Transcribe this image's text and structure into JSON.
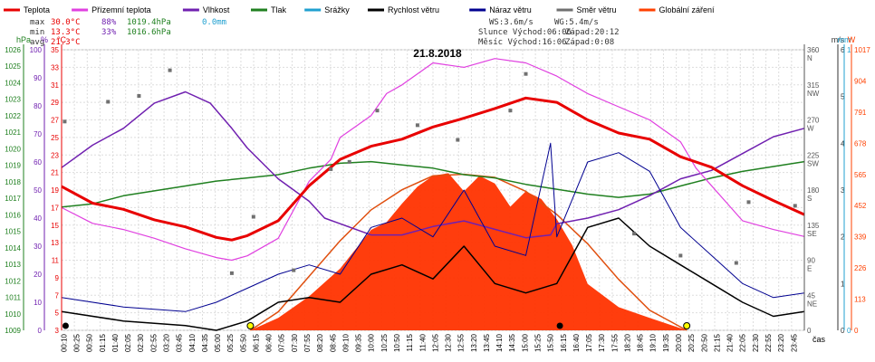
{
  "chart_data": {
    "type": "line",
    "title": "21.8.2018",
    "legend": [
      {
        "name": "Teplota",
        "color": "#e80000"
      },
      {
        "name": "Přízemní teplota",
        "color": "#e040e0"
      },
      {
        "name": "Vlhkost",
        "color": "#7020b0"
      },
      {
        "name": "Tlak",
        "color": "#208020"
      },
      {
        "name": "Srážky",
        "color": "#20a0d0"
      },
      {
        "name": "Rychlost větru",
        "color": "#000000"
      },
      {
        "name": "Náraz větru",
        "color": "#000090"
      },
      {
        "name": "Směr větru",
        "color": "#707070"
      },
      {
        "name": "Globální záření",
        "color": "#ff4000"
      }
    ],
    "stats": {
      "max": {
        "label": "max",
        "temp": "30.0°C",
        "hum": "88%",
        "press": "1019.4hPa",
        "rain": "0.0mm"
      },
      "min": {
        "label": "min",
        "temp": "13.3°C",
        "hum": "33%",
        "press": "1016.6hPa"
      },
      "avg": {
        "label": "avg",
        "temp": "21.3°C"
      }
    },
    "info": {
      "ws": "WS:3.6m/s",
      "wg": "WG:5.4m/s",
      "slunce": "Slunce Východ:06:06",
      "slunce_zapad": "Západ:20:12",
      "mesic": "Měsíc  Východ:16:06",
      "mesic_zapad": "Západ:0:08"
    },
    "axes": {
      "hpa": {
        "unit": "hPa",
        "ticks": [
          "1009",
          "1010",
          "1011",
          "1012",
          "1013",
          "1014",
          "1015",
          "1016",
          "1017",
          "1018",
          "1019",
          "1020",
          "1021",
          "1022",
          "1023",
          "1024",
          "1025",
          "1026"
        ],
        "color": "#208020"
      },
      "pct": {
        "unit": "%",
        "ticks": [
          "0",
          "10",
          "20",
          "30",
          "40",
          "50",
          "60",
          "70",
          "80",
          "90",
          "100"
        ],
        "color": "#7020b0"
      },
      "temp": {
        "unit": "°C",
        "ticks": [
          "3",
          "5",
          "7",
          "9",
          "11",
          "13",
          "15",
          "17",
          "19",
          "21",
          "23",
          "25",
          "27",
          "29",
          "31",
          "33",
          "35"
        ],
        "color": "#e80000"
      },
      "dir": {
        "ticks": [
          "0",
          "45\nNE",
          "90\nE",
          "135\nSE",
          "180\nS",
          "225\nSW",
          "270\nW",
          "315\nNW",
          "360\nN"
        ]
      },
      "ms": {
        "unit": "m/s",
        "ticks": [
          "0",
          "1",
          "2",
          "3",
          "4",
          "5",
          "6"
        ]
      },
      "mm": {
        "unit": "mm",
        "ticks": [
          "0",
          "1"
        ]
      },
      "w": {
        "unit": "W",
        "ticks": [
          "0",
          "113",
          "226",
          "339",
          "452",
          "565",
          "678",
          "791",
          "904",
          "1017"
        ]
      },
      "time_label": "čas",
      "x_ticks": [
        "00:10",
        "00:25",
        "00:50",
        "01:15",
        "01:40",
        "02:05",
        "02:30",
        "02:55",
        "03:20",
        "03:45",
        "04:10",
        "04:35",
        "05:00",
        "05:25",
        "05:50",
        "06:15",
        "06:40",
        "07:05",
        "07:30",
        "07:55",
        "08:20",
        "08:45",
        "09:10",
        "09:35",
        "10:00",
        "10:25",
        "10:50",
        "11:15",
        "11:40",
        "12:05",
        "12:30",
        "12:55",
        "13:20",
        "13:45",
        "14:10",
        "14:35",
        "15:00",
        "15:25",
        "15:50",
        "16:15",
        "16:40",
        "17:05",
        "17:30",
        "17:55",
        "18:20",
        "18:45",
        "19:10",
        "19:35",
        "20:00",
        "20:25",
        "20:50",
        "21:15",
        "21:40",
        "22:05",
        "22:30",
        "22:55",
        "23:20",
        "23:45"
      ]
    },
    "series": [
      {
        "name": "Teplota",
        "unit": "°C",
        "x_hours": [
          0,
          1,
          2,
          3,
          4,
          5,
          5.5,
          6,
          7,
          8,
          9,
          10,
          11,
          12,
          13,
          14,
          15,
          16,
          17,
          18,
          19,
          20,
          21,
          22,
          23,
          24
        ],
        "values": [
          19.4,
          17.5,
          16.8,
          15.6,
          14.8,
          13.6,
          13.3,
          13.8,
          15.5,
          19.5,
          22.5,
          24.0,
          24.8,
          26.2,
          27.2,
          28.3,
          29.5,
          29.0,
          27.0,
          25.5,
          24.8,
          22.8,
          21.6,
          19.5,
          17.8,
          16.2
        ]
      },
      {
        "name": "Přízemní teplota",
        "unit": "°C",
        "x_hours": [
          0,
          1,
          2,
          3,
          4,
          5,
          5.5,
          6,
          7,
          8,
          8.7,
          9,
          10,
          10.5,
          11,
          12,
          13,
          14,
          15,
          16,
          17,
          18,
          19,
          20,
          20.5,
          21,
          21.5,
          22,
          23,
          24
        ],
        "values": [
          17.0,
          15.2,
          14.5,
          13.5,
          12.3,
          11.3,
          11.0,
          11.5,
          13.5,
          20.0,
          22.5,
          25.0,
          27.5,
          30.0,
          31.0,
          33.5,
          33.0,
          34.0,
          33.5,
          32.0,
          30.0,
          28.5,
          27.0,
          24.5,
          21.5,
          19.5,
          17.5,
          15.5,
          14.5,
          13.7
        ]
      },
      {
        "name": "Vlhkost",
        "unit": "%",
        "x_hours": [
          0,
          1,
          2,
          3,
          4,
          4.8,
          5.5,
          6,
          7,
          8,
          8.5,
          9,
          10,
          11,
          12,
          13,
          14,
          15,
          15.8,
          16,
          17,
          18,
          19,
          20,
          21,
          22,
          23,
          24
        ],
        "values": [
          58,
          66,
          72,
          81,
          85,
          81,
          72,
          65,
          54,
          46,
          40,
          38,
          34,
          34,
          37,
          39,
          36,
          33,
          34,
          38,
          40,
          43,
          48,
          54,
          57,
          63,
          69,
          72
        ]
      },
      {
        "name": "Tlak",
        "unit": "hPa",
        "x_hours": [
          0,
          1,
          2,
          3,
          4,
          5,
          6,
          7,
          8,
          9,
          10,
          11,
          12,
          13,
          14,
          15,
          16,
          17,
          18,
          19,
          20,
          21,
          22,
          23,
          24
        ],
        "values": [
          1016.6,
          1016.8,
          1017.3,
          1017.6,
          1017.9,
          1018.2,
          1018.4,
          1018.6,
          1019.0,
          1019.3,
          1019.4,
          1019.2,
          1019.0,
          1018.6,
          1018.4,
          1018.0,
          1017.7,
          1017.4,
          1017.2,
          1017.4,
          1017.9,
          1018.4,
          1018.8,
          1019.1,
          1019.4
        ]
      },
      {
        "name": "Rychlost větru",
        "unit": "m/s",
        "x_hours": [
          0,
          2,
          4,
          5,
          6,
          6.5,
          7,
          8,
          9,
          10,
          11,
          12,
          13,
          14,
          15,
          16,
          17,
          18,
          19,
          20,
          21,
          22,
          23,
          24
        ],
        "values": [
          0.4,
          0.2,
          0.1,
          0.0,
          0.2,
          0.4,
          0.6,
          0.7,
          0.6,
          1.2,
          1.4,
          1.1,
          1.8,
          1.0,
          0.8,
          1.0,
          2.2,
          2.4,
          1.8,
          1.4,
          1.0,
          0.6,
          0.3,
          0.4
        ]
      },
      {
        "name": "Náraz větru",
        "unit": "m/s",
        "x_hours": [
          0,
          2,
          4,
          5,
          6,
          7,
          8,
          9,
          10,
          11,
          12,
          13,
          14,
          15,
          15.8,
          16,
          17,
          18,
          19,
          20,
          21,
          22,
          23,
          24
        ],
        "values": [
          0.7,
          0.5,
          0.4,
          0.6,
          0.9,
          1.2,
          1.4,
          1.2,
          2.2,
          2.4,
          2.0,
          3.0,
          1.8,
          1.6,
          4.0,
          2.0,
          3.6,
          3.8,
          3.4,
          2.2,
          1.6,
          1.0,
          0.7,
          0.8
        ]
      },
      {
        "name": "Směr větru",
        "unit": "°",
        "x_hours": [
          0.1,
          1.5,
          2.5,
          3.5,
          5.5,
          6.2,
          7.5,
          8.7,
          9.3,
          10.2,
          11.5,
          12.8,
          14.5,
          15.0,
          18.5,
          20.0,
          21.8,
          22.2,
          23.7
        ],
        "values": [
          285,
          312,
          320,
          355,
          78,
          155,
          82,
          220,
          230,
          300,
          280,
          260,
          300,
          350,
          132,
          102,
          92,
          175,
          170
        ]
      },
      {
        "name": "Globální záření",
        "unit": "W/m²",
        "x_hours": [
          6.1,
          7,
          8,
          9,
          10,
          10.5,
          11,
          11.5,
          12,
          12.5,
          13,
          13.5,
          14,
          14.5,
          15,
          15.5,
          16,
          16.5,
          17,
          18,
          19,
          20.2
        ],
        "values": [
          0,
          80,
          220,
          400,
          650,
          700,
          820,
          930,
          1000,
          1017,
          900,
          1000,
          950,
          800,
          900,
          850,
          720,
          550,
          300,
          150,
          80,
          0
        ]
      },
      {
        "name": "Globální záření (teoretické)",
        "unit": "W/m²",
        "x_hours": [
          6.1,
          7,
          8,
          9,
          10,
          11,
          12,
          13,
          14,
          15,
          16,
          17,
          18,
          19,
          20.2
        ],
        "values": [
          0,
          120,
          350,
          580,
          780,
          910,
          1000,
          1010,
          990,
          900,
          750,
          560,
          330,
          130,
          0
        ]
      }
    ],
    "xlim": [
      0,
      24
    ],
    "ylim_temp": [
      3,
      35
    ],
    "ylim_pct": [
      0,
      100
    ],
    "ylim_hpa": [
      1009,
      1026.3
    ],
    "ylim_ms": [
      0,
      6
    ],
    "ylim_w": [
      0,
      1017
    ]
  }
}
